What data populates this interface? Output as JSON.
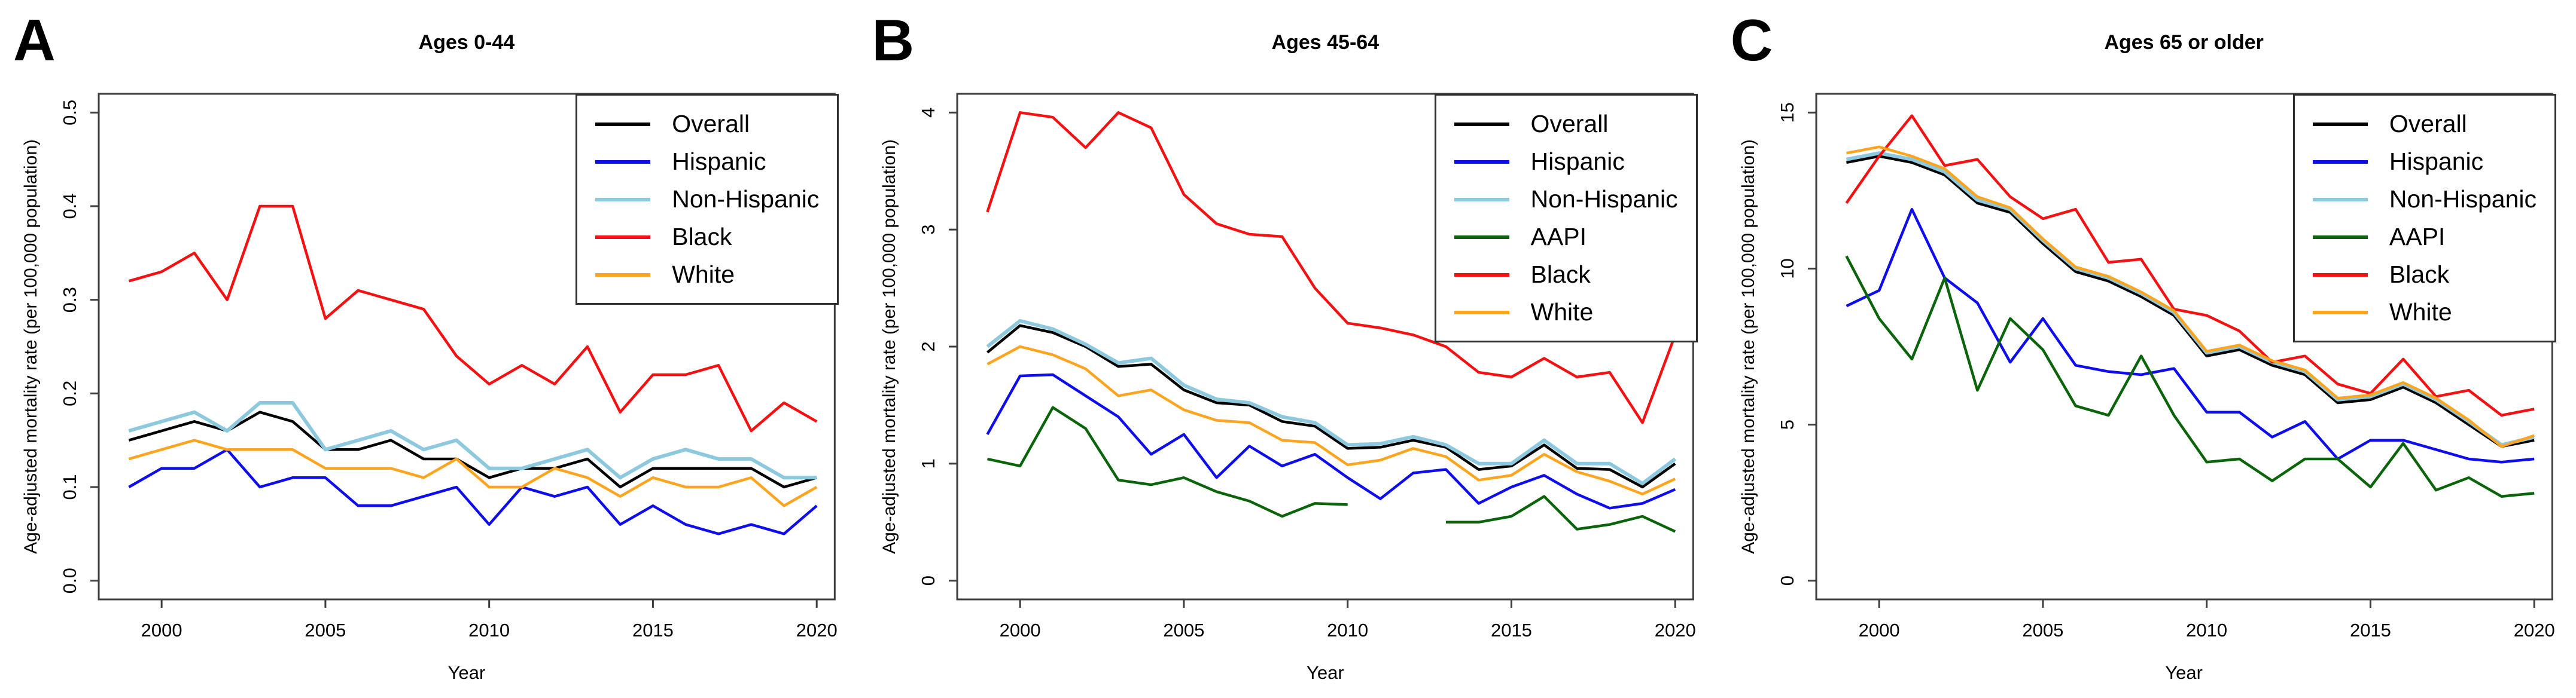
{
  "figure": {
    "background": "#ffffff",
    "axis_color": "#3d3d3d",
    "text_color": "#000000"
  },
  "chart_data": [
    {
      "type": "line",
      "panel_label": "A",
      "title": "Ages 0-44",
      "xlabel": "Year",
      "ylabel": "Age-adjusted mortality rate (per 100,000 population)",
      "grid": false,
      "legend_position": "top-right",
      "x": [
        1999,
        2000,
        2001,
        2002,
        2003,
        2004,
        2005,
        2006,
        2007,
        2008,
        2009,
        2010,
        2011,
        2012,
        2013,
        2014,
        2015,
        2016,
        2017,
        2018,
        2019,
        2020
      ],
      "xticks": [
        2000,
        2005,
        2010,
        2015,
        2020
      ],
      "xtick_labels": [
        "2000",
        "2005",
        "2010",
        "2015",
        "2020"
      ],
      "yticks": [
        0.0,
        0.1,
        0.2,
        0.3,
        0.4,
        0.5
      ],
      "ytick_labels": [
        "0.0",
        "0.1",
        "0.2",
        "0.3",
        "0.4",
        "0.5"
      ],
      "ylim": [
        0,
        0.5
      ],
      "xlim_render": [
        1998.08,
        2020.55
      ],
      "ylim_render": [
        -0.02,
        0.52
      ],
      "series": [
        {
          "name": "Overall",
          "color": "#000000",
          "values": [
            0.15,
            0.16,
            0.17,
            0.16,
            0.18,
            0.17,
            0.14,
            0.14,
            0.15,
            0.13,
            0.13,
            0.11,
            0.12,
            0.12,
            0.13,
            0.1,
            0.12,
            0.12,
            0.12,
            0.12,
            0.1,
            0.11
          ]
        },
        {
          "name": "Hispanic",
          "color": "#0d0dee",
          "values": [
            0.1,
            0.12,
            0.12,
            0.14,
            0.1,
            0.11,
            0.11,
            0.08,
            0.08,
            0.09,
            0.1,
            0.06,
            0.1,
            0.09,
            0.1,
            0.06,
            0.08,
            0.06,
            0.05,
            0.06,
            0.05,
            0.08
          ]
        },
        {
          "name": "Non-Hispanic",
          "color": "#8dc9de",
          "values": [
            0.16,
            0.17,
            0.18,
            0.16,
            0.19,
            0.19,
            0.14,
            0.15,
            0.16,
            0.14,
            0.15,
            0.12,
            0.12,
            0.13,
            0.14,
            0.11,
            0.13,
            0.14,
            0.13,
            0.13,
            0.11,
            0.11
          ]
        },
        {
          "name": "Black",
          "color": "#f51111",
          "values": [
            0.32,
            0.33,
            0.35,
            0.3,
            0.4,
            0.4,
            0.28,
            0.31,
            0.3,
            0.29,
            0.24,
            0.21,
            0.23,
            0.21,
            0.25,
            0.18,
            0.22,
            0.22,
            0.23,
            0.16,
            0.19,
            0.17
          ]
        },
        {
          "name": "White",
          "color": "#ffa41e",
          "values": [
            0.13,
            0.14,
            0.15,
            0.14,
            0.14,
            0.14,
            0.12,
            0.12,
            0.12,
            0.11,
            0.13,
            0.1,
            0.1,
            0.12,
            0.11,
            0.09,
            0.11,
            0.1,
            0.1,
            0.11,
            0.08,
            0.1
          ]
        }
      ]
    },
    {
      "type": "line",
      "panel_label": "B",
      "title": "Ages 45-64",
      "xlabel": "Year",
      "ylabel": "Age-adjusted mortality rate (per 100,000 population)",
      "grid": false,
      "legend_position": "top-right",
      "x": [
        1999,
        2000,
        2001,
        2002,
        2003,
        2004,
        2005,
        2006,
        2007,
        2008,
        2009,
        2010,
        2011,
        2012,
        2013,
        2014,
        2015,
        2016,
        2017,
        2018,
        2019,
        2020
      ],
      "xticks": [
        2000,
        2005,
        2010,
        2015,
        2020
      ],
      "xtick_labels": [
        "2000",
        "2005",
        "2010",
        "2015",
        "2020"
      ],
      "yticks": [
        0,
        1,
        2,
        3,
        4
      ],
      "ytick_labels": [
        "0",
        "1",
        "2",
        "3",
        "4"
      ],
      "ylim": [
        0,
        4
      ],
      "xlim_render": [
        1998.08,
        2020.55
      ],
      "ylim_render": [
        -0.16,
        4.16
      ],
      "series": [
        {
          "name": "Overall",
          "color": "#000000",
          "values": [
            1.95,
            2.18,
            2.12,
            2.0,
            1.83,
            1.85,
            1.63,
            1.52,
            1.5,
            1.36,
            1.32,
            1.13,
            1.14,
            1.2,
            1.14,
            0.95,
            0.98,
            1.16,
            0.96,
            0.95,
            0.8,
            1.0
          ]
        },
        {
          "name": "Hispanic",
          "color": "#0d0dee",
          "values": [
            1.25,
            1.75,
            1.76,
            1.58,
            1.4,
            1.08,
            1.25,
            0.88,
            1.15,
            0.98,
            1.08,
            0.88,
            0.7,
            0.92,
            0.95,
            0.66,
            0.8,
            0.9,
            0.74,
            0.62,
            0.66,
            0.78
          ]
        },
        {
          "name": "Non-Hispanic",
          "color": "#8dc9de",
          "values": [
            2.0,
            2.22,
            2.15,
            2.02,
            1.86,
            1.9,
            1.67,
            1.55,
            1.52,
            1.4,
            1.35,
            1.16,
            1.17,
            1.23,
            1.16,
            1.0,
            1.0,
            1.2,
            1.0,
            1.0,
            0.83,
            1.04
          ]
        },
        {
          "name": "AAPI",
          "color": "#0a650a",
          "values": [
            1.04,
            0.98,
            1.48,
            1.3,
            0.86,
            0.82,
            0.88,
            0.76,
            0.68,
            0.55,
            0.66,
            0.65,
            null,
            null,
            0.5,
            0.5,
            0.55,
            0.72,
            0.44,
            0.48,
            0.55,
            0.42
          ]
        },
        {
          "name": "Black",
          "color": "#f51111",
          "values": [
            3.15,
            4.0,
            3.96,
            3.7,
            4.0,
            3.87,
            3.3,
            3.05,
            2.96,
            2.94,
            2.5,
            2.2,
            2.16,
            2.1,
            2.0,
            1.78,
            1.74,
            1.9,
            1.74,
            1.78,
            1.35,
            2.1
          ]
        },
        {
          "name": "White",
          "color": "#ffa41e",
          "values": [
            1.85,
            2.0,
            1.93,
            1.81,
            1.58,
            1.63,
            1.46,
            1.37,
            1.35,
            1.2,
            1.18,
            0.99,
            1.03,
            1.13,
            1.06,
            0.86,
            0.9,
            1.08,
            0.93,
            0.85,
            0.74,
            0.87
          ]
        }
      ]
    },
    {
      "type": "line",
      "panel_label": "C",
      "title": "Ages 65 or older",
      "xlabel": "Year",
      "ylabel": "Age-adjusted mortality rate (per 100,000 population)",
      "grid": false,
      "legend_position": "top-right",
      "x": [
        1999,
        2000,
        2001,
        2002,
        2003,
        2004,
        2005,
        2006,
        2007,
        2008,
        2009,
        2010,
        2011,
        2012,
        2013,
        2014,
        2015,
        2016,
        2017,
        2018,
        2019,
        2020
      ],
      "xticks": [
        2000,
        2005,
        2010,
        2015,
        2020
      ],
      "xtick_labels": [
        "2000",
        "2005",
        "2010",
        "2015",
        "2020"
      ],
      "yticks": [
        0,
        5,
        10,
        15
      ],
      "ytick_labels": [
        "0",
        "5",
        "10",
        "15"
      ],
      "ylim": [
        0,
        15
      ],
      "xlim_render": [
        1998.08,
        2020.55
      ],
      "ylim_render": [
        -0.6,
        15.6
      ],
      "series": [
        {
          "name": "Overall",
          "color": "#000000",
          "values": [
            13.4,
            13.6,
            13.4,
            13.0,
            12.1,
            11.8,
            10.8,
            9.9,
            9.6,
            9.1,
            8.5,
            7.2,
            7.4,
            6.9,
            6.6,
            5.7,
            5.8,
            6.2,
            5.7,
            5.0,
            4.3,
            4.5
          ]
        },
        {
          "name": "Hispanic",
          "color": "#0d0dee",
          "values": [
            8.8,
            9.3,
            11.9,
            9.7,
            8.9,
            7.0,
            8.4,
            6.9,
            6.7,
            6.6,
            6.8,
            5.4,
            5.4,
            4.6,
            5.1,
            3.9,
            4.5,
            4.5,
            4.2,
            3.9,
            3.8,
            3.9
          ]
        },
        {
          "name": "Non-Hispanic",
          "color": "#8dc9de",
          "values": [
            13.5,
            13.7,
            13.5,
            13.1,
            12.2,
            11.9,
            10.9,
            10.0,
            9.7,
            9.2,
            8.6,
            7.3,
            7.5,
            7.0,
            6.7,
            5.8,
            5.9,
            6.3,
            5.8,
            5.1,
            4.35,
            4.6
          ]
        },
        {
          "name": "AAPI",
          "color": "#0a650a",
          "values": [
            10.4,
            8.4,
            7.1,
            9.7,
            6.1,
            8.4,
            7.4,
            5.6,
            5.3,
            7.2,
            5.3,
            3.8,
            3.9,
            3.2,
            3.9,
            3.9,
            3.0,
            4.4,
            2.9,
            3.3,
            2.7,
            2.8
          ]
        },
        {
          "name": "Black",
          "color": "#f51111",
          "values": [
            12.1,
            13.6,
            14.9,
            13.3,
            13.5,
            12.3,
            11.6,
            11.9,
            10.2,
            10.3,
            8.7,
            8.5,
            8.0,
            7.0,
            7.2,
            6.3,
            6.0,
            7.1,
            5.9,
            6.1,
            5.3,
            5.5
          ]
        },
        {
          "name": "White",
          "color": "#ffa41e",
          "values": [
            13.7,
            13.9,
            13.6,
            13.2,
            12.3,
            11.95,
            10.95,
            10.05,
            9.75,
            9.25,
            8.65,
            7.35,
            7.55,
            7.05,
            6.75,
            5.85,
            5.95,
            6.35,
            5.85,
            5.15,
            4.3,
            4.65
          ]
        }
      ]
    }
  ]
}
